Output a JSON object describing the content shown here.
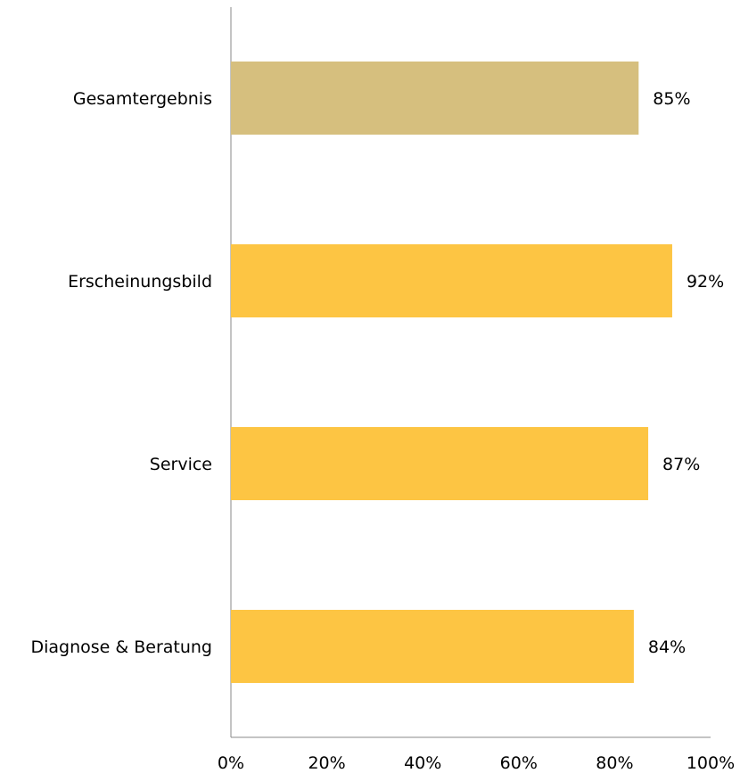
{
  "chart_data": {
    "type": "bar",
    "orientation": "horizontal",
    "categories": [
      "Gesamtergebnis",
      "Erscheinungsbild",
      "Service",
      "Diagnose & Beratung"
    ],
    "values": [
      85,
      92,
      87,
      84
    ],
    "value_labels": [
      "85%",
      "92%",
      "87%",
      "84%"
    ],
    "bar_colors": [
      "#D6BF7E",
      "#FDC543",
      "#FDC543",
      "#FDC543"
    ],
    "xlim": [
      0,
      100
    ],
    "x_ticks": [
      0,
      20,
      40,
      60,
      80,
      100
    ],
    "x_tick_labels": [
      "0%",
      "20%",
      "40%",
      "60%",
      "80%",
      "100%"
    ],
    "grid": false,
    "legend": "none",
    "axis_color": "#888888"
  }
}
